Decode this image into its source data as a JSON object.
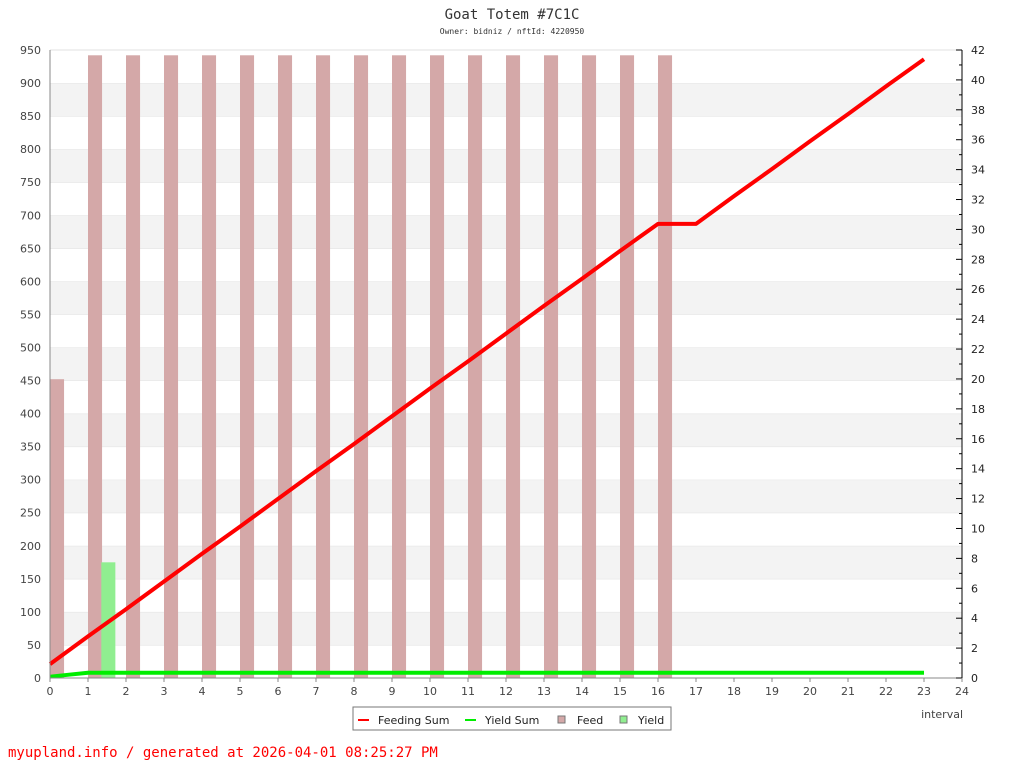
{
  "chart_data": {
    "type": "bar+line",
    "title": "Goat Totem #7C1C",
    "subtitle": "Owner: bidniz / nftId: 4220950",
    "xlabel": "interval",
    "xlim": [
      0,
      24
    ],
    "x_ticks": [
      0,
      1,
      2,
      3,
      4,
      5,
      6,
      7,
      8,
      9,
      10,
      11,
      12,
      13,
      14,
      15,
      16,
      17,
      18,
      19,
      20,
      21,
      22,
      23,
      24
    ],
    "ylim_left": [
      0,
      950
    ],
    "y_ticks_left": [
      0,
      50,
      100,
      150,
      200,
      250,
      300,
      350,
      400,
      450,
      500,
      550,
      600,
      650,
      700,
      750,
      800,
      850,
      900,
      950
    ],
    "ylim_right": [
      0,
      42
    ],
    "y_ticks_right": [
      0,
      2,
      4,
      6,
      8,
      10,
      12,
      14,
      16,
      18,
      20,
      22,
      24,
      26,
      28,
      30,
      32,
      34,
      36,
      38,
      40,
      42
    ],
    "grid": "horizontal alternating bands",
    "legend_position": "bottom",
    "series": [
      {
        "name": "Feeding Sum",
        "type": "line",
        "color": "#ff0000",
        "x": [
          0,
          1,
          2,
          3,
          4,
          5,
          6,
          7,
          8,
          9,
          10,
          11,
          12,
          13,
          14,
          15,
          16,
          17,
          18,
          19,
          20,
          21,
          22,
          23
        ],
        "values": [
          21,
          63,
          104,
          146,
          188,
          229,
          271,
          313,
          354,
          396,
          438,
          479,
          521,
          563,
          604,
          646,
          687,
          687,
          729,
          770,
          812,
          853,
          895,
          936
        ]
      },
      {
        "name": "Yield Sum",
        "type": "line",
        "color": "#00ee00",
        "x": [
          0,
          0.5,
          1,
          23
        ],
        "values": [
          2,
          5,
          8,
          8
        ]
      },
      {
        "name": "Feed",
        "type": "bar",
        "color": "#d4a8a8",
        "x": [
          0,
          1,
          2,
          3,
          4,
          5,
          6,
          7,
          8,
          9,
          10,
          11,
          12,
          13,
          14,
          15,
          16
        ],
        "values": [
          452,
          942,
          942,
          942,
          942,
          942,
          942,
          942,
          942,
          942,
          942,
          942,
          942,
          942,
          942,
          942,
          942
        ]
      },
      {
        "name": "Yield",
        "type": "bar",
        "color": "#90ee90",
        "x": [
          1.35
        ],
        "values": [
          175
        ]
      }
    ]
  },
  "footer": "myupland.info / generated at 2026-04-01 08:25:27 PM"
}
